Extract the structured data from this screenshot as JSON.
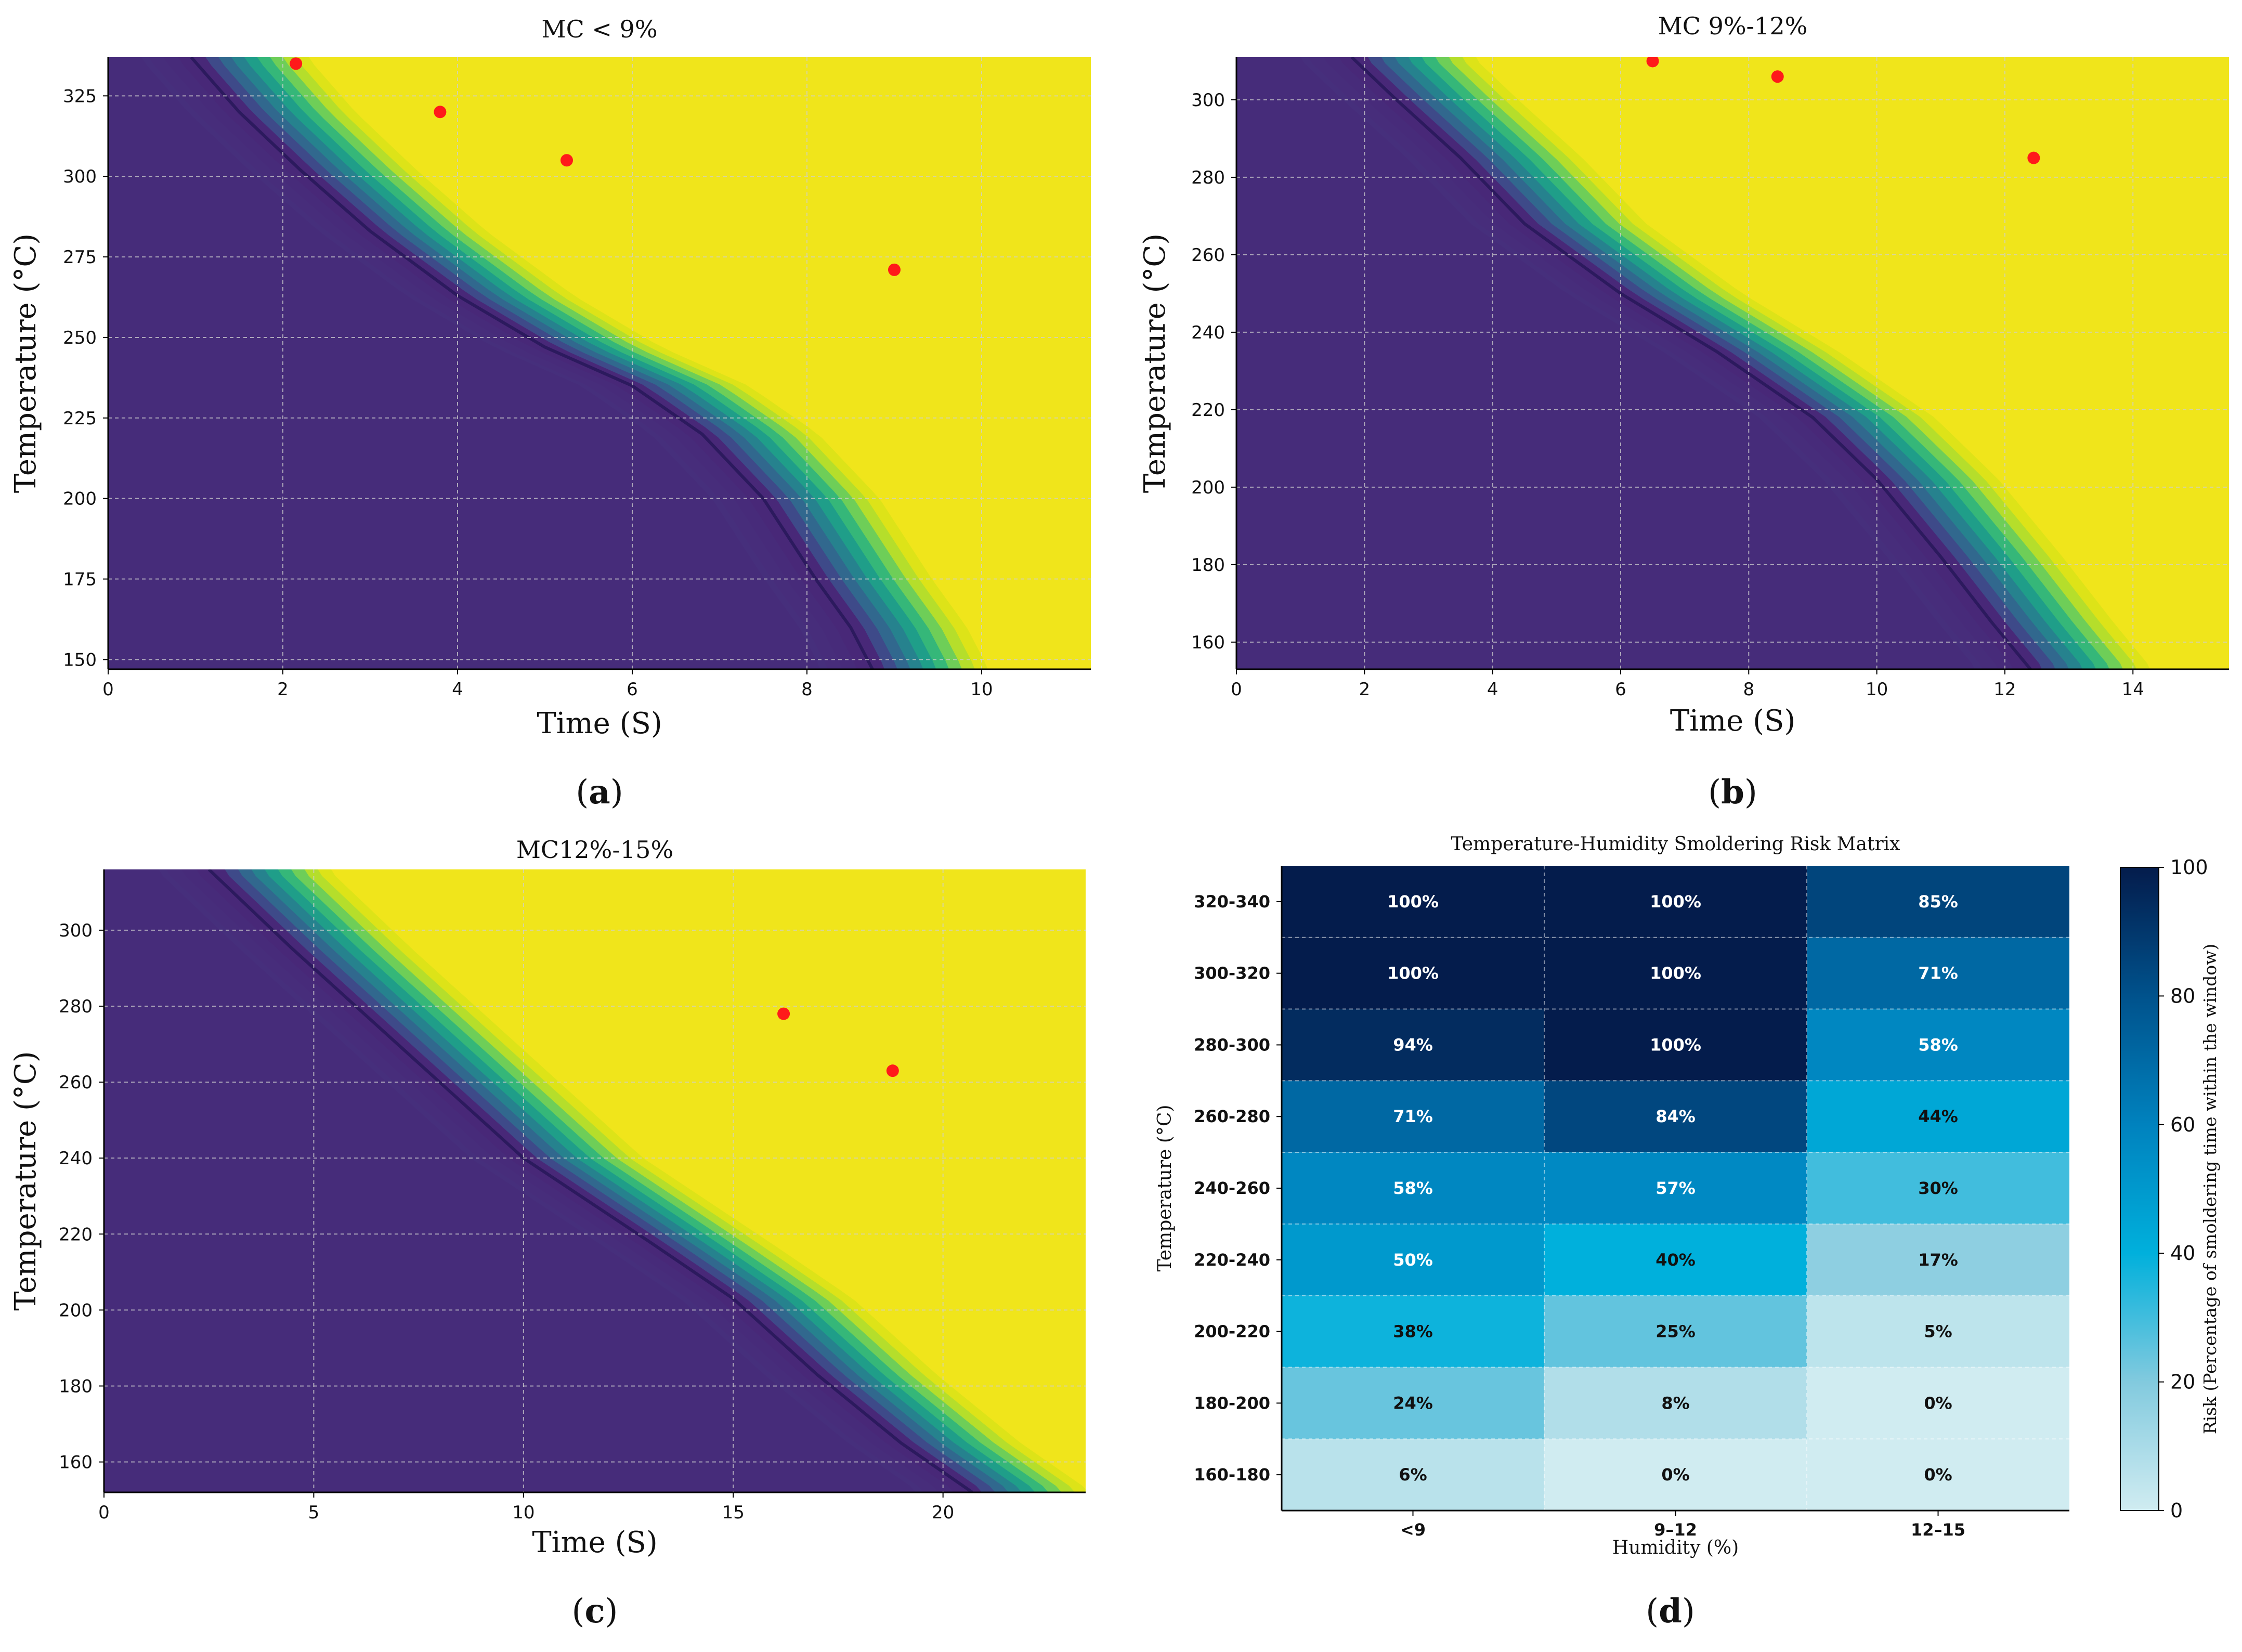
{
  "chart_data": [
    {
      "type": "contour",
      "panel_label": "(a)",
      "title": "MC < 9%",
      "xlabel": "Time (S)",
      "ylabel": "Temperature (°C)",
      "xlim": [
        0,
        11.25
      ],
      "ylim": [
        147,
        337
      ],
      "xticks": [
        0,
        2,
        4,
        6,
        8,
        10
      ],
      "yticks": [
        150,
        175,
        200,
        225,
        250,
        275,
        300,
        325
      ],
      "boundary_curve": [
        [
          0.95,
          337
        ],
        [
          1.5,
          320
        ],
        [
          2.2,
          302
        ],
        [
          3,
          283
        ],
        [
          4,
          263
        ],
        [
          5,
          247
        ],
        [
          6,
          235
        ],
        [
          6.8,
          220
        ],
        [
          7.5,
          200
        ],
        [
          8.1,
          175
        ],
        [
          8.5,
          160
        ],
        [
          8.75,
          147
        ]
      ],
      "band_width_s": 1.4,
      "red_points": [
        [
          2.15,
          335
        ],
        [
          3.8,
          320
        ],
        [
          5.25,
          305
        ],
        [
          9.0,
          271
        ]
      ],
      "grid": true
    },
    {
      "type": "contour",
      "panel_label": "(b)",
      "title": "MC 9%-12%",
      "xlabel": "Time (S)",
      "ylabel": "Temperature (°C)",
      "xlim": [
        0,
        15.5
      ],
      "ylim": [
        153,
        311
      ],
      "xticks": [
        0,
        2,
        4,
        6,
        8,
        10,
        12,
        14
      ],
      "yticks": [
        160,
        180,
        200,
        220,
        240,
        260,
        280,
        300
      ],
      "boundary_curve": [
        [
          1.8,
          311
        ],
        [
          2.5,
          300
        ],
        [
          3.5,
          285
        ],
        [
          4.5,
          268
        ],
        [
          6,
          250
        ],
        [
          7.5,
          235
        ],
        [
          9,
          218
        ],
        [
          10,
          202
        ],
        [
          11,
          182
        ],
        [
          11.8,
          165
        ],
        [
          12.4,
          153
        ]
      ],
      "band_width_s": 2.0,
      "red_points": [
        [
          6.5,
          310
        ],
        [
          8.45,
          306
        ],
        [
          12.45,
          285
        ]
      ],
      "grid": true
    },
    {
      "type": "contour",
      "panel_label": "(c)",
      "title": "MC12%-15%",
      "xlabel": "Time (S)",
      "ylabel": "Temperature (°C)",
      "xlim": [
        0,
        23.4
      ],
      "ylim": [
        152,
        316
      ],
      "xticks": [
        0,
        5,
        10,
        15,
        20
      ],
      "yticks": [
        160,
        180,
        200,
        220,
        240,
        260,
        280,
        300
      ],
      "boundary_curve": [
        [
          2.5,
          316
        ],
        [
          4.5,
          295
        ],
        [
          7,
          270
        ],
        [
          10,
          240
        ],
        [
          13,
          218
        ],
        [
          15,
          203
        ],
        [
          17,
          183
        ],
        [
          19,
          165
        ],
        [
          20.7,
          152
        ]
      ],
      "band_width_s": 3.0,
      "red_points": [
        [
          16.2,
          278
        ],
        [
          18.8,
          263
        ]
      ],
      "grid": true
    },
    {
      "type": "heatmap",
      "panel_label": "(d)",
      "title": "Temperature-Humidity Smoldering Risk Matrix",
      "xlabel": "Humidity (%)",
      "ylabel": "Temperature (°C)",
      "colorbar_label": "Risk (Percentage of smoldering time within the window)",
      "colorbar_ticks": [
        0,
        20,
        40,
        60,
        80,
        100
      ],
      "categories_x": [
        "<9",
        "9–12",
        "12–15"
      ],
      "categories_y": [
        "320-340",
        "300-320",
        "280-300",
        "260-280",
        "240-260",
        "220-240",
        "200-220",
        "180-200",
        "160-180"
      ],
      "values": [
        [
          100,
          100,
          85
        ],
        [
          100,
          100,
          71
        ],
        [
          94,
          100,
          58
        ],
        [
          71,
          84,
          44
        ],
        [
          58,
          57,
          30
        ],
        [
          50,
          40,
          17
        ],
        [
          38,
          25,
          5
        ],
        [
          24,
          8,
          0
        ],
        [
          6,
          0,
          0
        ]
      ]
    }
  ]
}
